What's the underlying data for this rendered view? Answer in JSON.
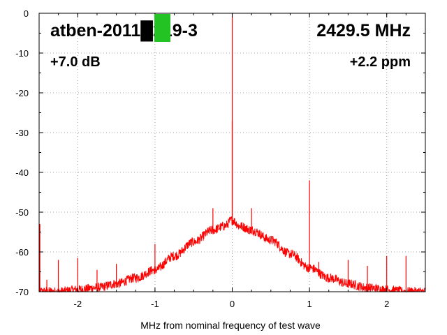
{
  "chart_data": {
    "type": "line",
    "title": "atben-2011█219-3",
    "frequency_label": "2429.5 MHz",
    "gain_label": "+7.0 dB",
    "offset_label": "+2.2 ppm",
    "xlabel": "MHz from nominal frequency of test wave",
    "ylabel": "",
    "xlim": [
      -2.5,
      2.5
    ],
    "ylim": [
      -70,
      0
    ],
    "grid": true,
    "x_ticks": [
      -2,
      -1,
      0,
      1,
      2
    ],
    "y_ticks": [
      0,
      -10,
      -20,
      -30,
      -40,
      -50,
      -60,
      -70
    ],
    "series": [
      {
        "color": "#ff0000",
        "envelope": {
          "x": [
            -2.5,
            -2.25,
            -2.0,
            -1.75,
            -1.5,
            -1.25,
            -1.0,
            -0.75,
            -0.5,
            -0.25,
            -0.1,
            0.0,
            0.1,
            0.25,
            0.5,
            0.75,
            1.0,
            1.25,
            1.5,
            1.75,
            2.0,
            2.25,
            2.5
          ],
          "y": [
            -70,
            -70,
            -69.5,
            -69,
            -68,
            -66.5,
            -64.5,
            -61,
            -57.5,
            -54.5,
            -53.5,
            -52,
            -53.5,
            -54.5,
            -57,
            -60.5,
            -64,
            -66.5,
            -68,
            -69,
            -69.5,
            -70,
            -70
          ]
        },
        "spurs": [
          {
            "x": -2.49,
            "y": -53
          },
          {
            "x": -2.4,
            "y": -67
          },
          {
            "x": -2.25,
            "y": -62
          },
          {
            "x": -2.0,
            "y": -61.5
          },
          {
            "x": -1.75,
            "y": -64.5
          },
          {
            "x": -1.5,
            "y": -63
          },
          {
            "x": -1.0,
            "y": -58
          },
          {
            "x": -0.25,
            "y": -49
          },
          {
            "x": 0.0,
            "y": 0
          },
          {
            "x": 0.0,
            "y": -27
          },
          {
            "x": 0.25,
            "y": -49
          },
          {
            "x": 1.0,
            "y": -42
          },
          {
            "x": 1.12,
            "y": -62.5
          },
          {
            "x": 1.5,
            "y": -62
          },
          {
            "x": 1.75,
            "y": -63.5
          },
          {
            "x": 2.0,
            "y": -61
          },
          {
            "x": 2.25,
            "y": -61
          }
        ]
      }
    ]
  },
  "marker": {
    "color": "#22c322"
  }
}
